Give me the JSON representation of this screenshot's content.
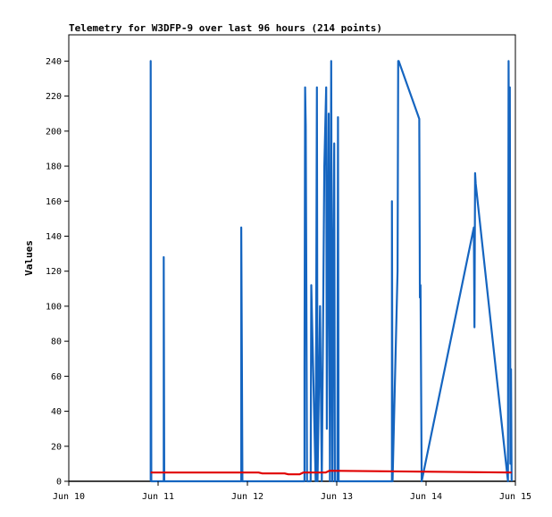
{
  "chart_data": {
    "type": "line",
    "title": "Telemetry for W3DFP-9 over last 96 hours (214 points)",
    "xlabel": "",
    "ylabel": "Values",
    "ylim": [
      0,
      255
    ],
    "xlim": [
      "Jun 10 00:00",
      "Jun 15 00:00"
    ],
    "x_ticks": [
      "Jun 10",
      "Jun 11",
      "Jun 12",
      "Jun 13",
      "Jun 14",
      "Jun 15"
    ],
    "y_ticks": [
      0,
      20,
      40,
      60,
      80,
      100,
      120,
      140,
      160,
      180,
      200,
      220,
      240
    ],
    "grid": false,
    "colors": {
      "series1": "#1565c0",
      "series2": "#e00000",
      "series3": "#000000"
    },
    "series": [
      {
        "name": "",
        "color": "#1565c0",
        "points": [
          [
            "Jun 10 22:00",
            0
          ],
          [
            "Jun 10 22:00",
            240
          ],
          [
            "Jun 10 22:10",
            0
          ],
          [
            "Jun 11 01:30",
            0
          ],
          [
            "Jun 11 01:30",
            128
          ],
          [
            "Jun 11 01:40",
            0
          ],
          [
            "Jun 11 22:20",
            0
          ],
          [
            "Jun 11 22:20",
            145
          ],
          [
            "Jun 11 22:30",
            72
          ],
          [
            "Jun 11 22:40",
            0
          ],
          [
            "Jun 12 15:20",
            0
          ],
          [
            "Jun 12 15:20",
            65
          ],
          [
            "Jun 12 15:30",
            225
          ],
          [
            "Jun 12 15:40",
            203
          ],
          [
            "Jun 12 15:50",
            110
          ],
          [
            "Jun 12 16:00",
            0
          ],
          [
            "Jun 12 17:00",
            0
          ],
          [
            "Jun 12 17:10",
            112
          ],
          [
            "Jun 12 18:20",
            0
          ],
          [
            "Jun 12 18:40",
            225
          ],
          [
            "Jun 12 18:50",
            0
          ],
          [
            "Jun 12 19:30",
            100
          ],
          [
            "Jun 12 20:00",
            0
          ],
          [
            "Jun 12 20:40",
            180
          ],
          [
            "Jun 12 21:10",
            225
          ],
          [
            "Jun 12 21:20",
            30
          ],
          [
            "Jun 12 21:50",
            210
          ],
          [
            "Jun 12 22:10",
            0
          ],
          [
            "Jun 12 22:30",
            240
          ],
          [
            "Jun 12 22:40",
            120
          ],
          [
            "Jun 12 22:50",
            0
          ],
          [
            "Jun 12 23:00",
            96
          ],
          [
            "Jun 12 23:20",
            193
          ],
          [
            "Jun 12 23:30",
            0
          ],
          [
            "Jun 13 00:10",
            0
          ],
          [
            "Jun 13 00:20",
            208
          ],
          [
            "Jun 13 00:30",
            0
          ],
          [
            "Jun 13 14:50",
            0
          ],
          [
            "Jun 13 14:50",
            160
          ],
          [
            "Jun 13 15:00",
            0
          ],
          [
            "Jun 13 16:20",
            120
          ],
          [
            "Jun 13 16:30",
            240
          ],
          [
            "Jun 13 16:40",
            240
          ],
          [
            "Jun 13 22:10",
            207
          ],
          [
            "Jun 13 22:20",
            105
          ],
          [
            "Jun 13 22:30",
            112
          ],
          [
            "Jun 13 22:50",
            0
          ],
          [
            "Jun 14 12:50",
            145
          ],
          [
            "Jun 14 13:00",
            88
          ],
          [
            "Jun 14 13:10",
            176
          ],
          [
            "Jun 14 13:20",
            170
          ],
          [
            "Jun 14 22:00",
            0
          ],
          [
            "Jun 14 22:10",
            240
          ],
          [
            "Jun 14 22:20",
            150
          ],
          [
            "Jun 14 22:30",
            225
          ],
          [
            "Jun 14 22:40",
            10
          ],
          [
            "Jun 14 22:50",
            64
          ],
          [
            "Jun 14 23:00",
            0
          ]
        ]
      },
      {
        "name": "",
        "color": "#e00000",
        "points": [
          [
            "Jun 10 22:00",
            5
          ],
          [
            "Jun 11 20:00",
            5
          ],
          [
            "Jun 12 03:00",
            5
          ],
          [
            "Jun 12 04:00",
            4.5
          ],
          [
            "Jun 12 10:00",
            4.5
          ],
          [
            "Jun 12 11:00",
            4
          ],
          [
            "Jun 12 14:00",
            4
          ],
          [
            "Jun 12 15:00",
            5
          ],
          [
            "Jun 12 18:00",
            5
          ],
          [
            "Jun 12 21:00",
            5
          ],
          [
            "Jun 12 22:00",
            6
          ],
          [
            "Jun 14 23:00",
            5
          ]
        ]
      },
      {
        "name": "",
        "color": "#000000",
        "points": [
          [
            "Jun 10 00:00",
            0
          ],
          [
            "Jun 15 00:00",
            0
          ]
        ]
      }
    ]
  }
}
